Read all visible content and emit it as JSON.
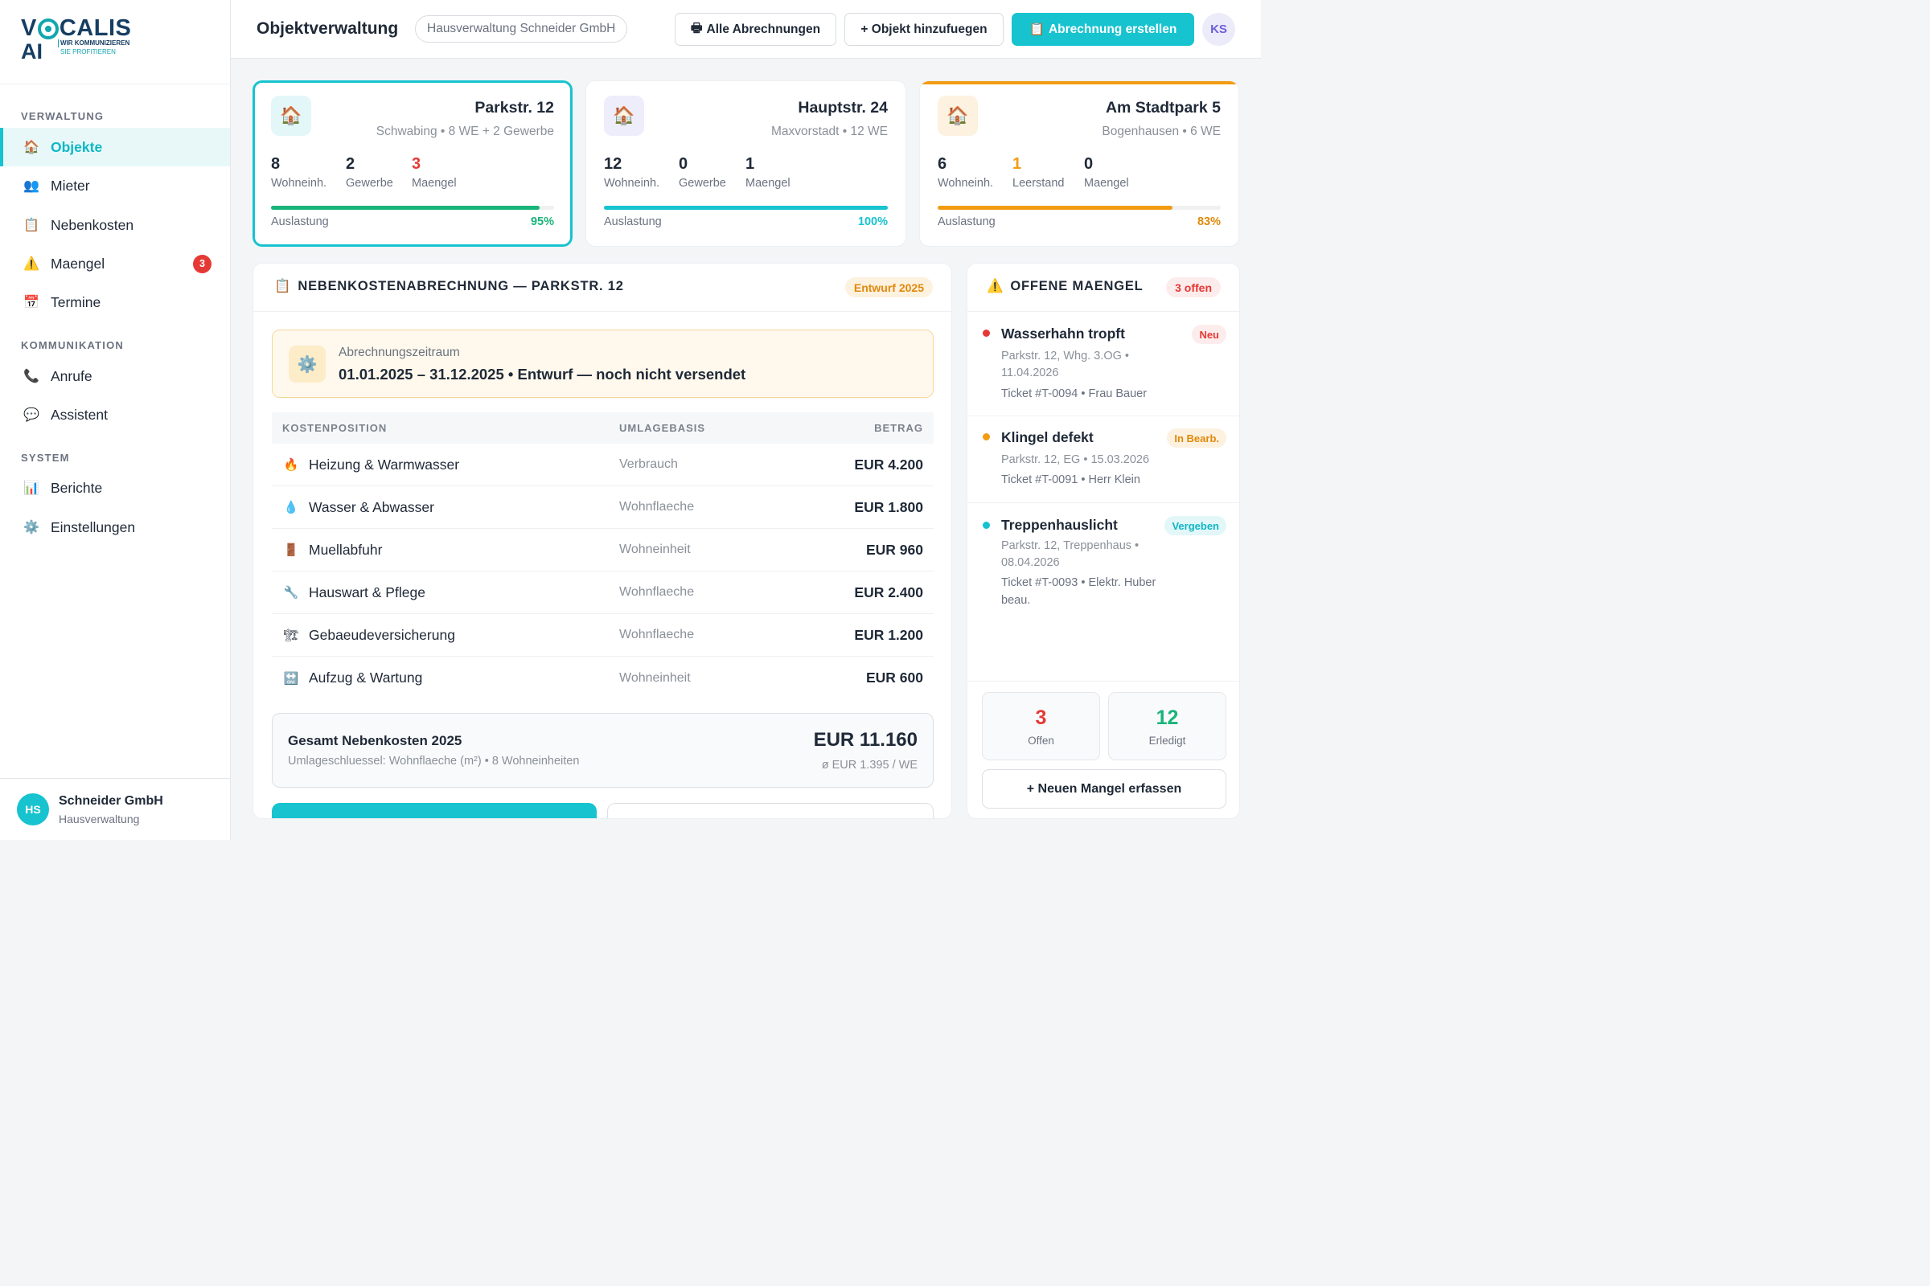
{
  "brand": {
    "name_part1": "V",
    "name_part2": "CALIS",
    "name_line2": "AI",
    "tagline1": "WIR KOMMUNIZIEREN",
    "tagline2": "SIE PROFITIEREN"
  },
  "sidebar": {
    "sections": [
      {
        "label": "VERWALTUNG"
      },
      {
        "label": "KOMMUNIKATION"
      },
      {
        "label": "SYSTEM"
      }
    ],
    "items": [
      {
        "label": "Objekte",
        "icon": "house-icon"
      },
      {
        "label": "Mieter",
        "icon": "people-icon"
      },
      {
        "label": "Nebenkosten",
        "icon": "clipboard-icon"
      },
      {
        "label": "Maengel",
        "icon": "warning-icon",
        "badge": "3"
      },
      {
        "label": "Termine",
        "icon": "calendar-icon"
      },
      {
        "label": "Anrufe",
        "icon": "phone-icon"
      },
      {
        "label": "Assistent",
        "icon": "chat-bubble-icon"
      },
      {
        "label": "Berichte",
        "icon": "bar-chart-icon"
      },
      {
        "label": "Einstellungen",
        "icon": "gear-icon"
      }
    ],
    "footer": {
      "initials": "HS",
      "name": "Schneider GmbH",
      "role": "Hausverwaltung"
    }
  },
  "header": {
    "title": "Objektverwaltung",
    "company": "Hausverwaltung Schneider GmbH",
    "btn_all": "Alle Abrechnungen",
    "btn_add": "+ Objekt hinzufuegen",
    "btn_create": "Abrechnung erstellen",
    "user_initials": "KS"
  },
  "properties": [
    {
      "name": "Parkstr. 12",
      "sub": "Schwabing • 8 WE + 2 Gewerbe",
      "stats": [
        {
          "value": "8",
          "label": "Wohneinh."
        },
        {
          "value": "2",
          "label": "Gewerbe"
        },
        {
          "value": "3",
          "label": "Maengel"
        }
      ],
      "util_label": "Auslastung",
      "util_pct": "95%",
      "util_value": 95,
      "bar_color": "#19b47a"
    },
    {
      "name": "Hauptstr. 24",
      "sub": "Maxvorstadt • 12 WE",
      "stats": [
        {
          "value": "12",
          "label": "Wohneinh."
        },
        {
          "value": "0",
          "label": "Gewerbe"
        },
        {
          "value": "1",
          "label": "Maengel"
        }
      ],
      "util_label": "Auslastung",
      "util_pct": "100%",
      "util_value": 100,
      "bar_color": "#16c3cf"
    },
    {
      "name": "Am Stadtpark 5",
      "sub": "Bogenhausen • 6 WE",
      "stats": [
        {
          "value": "6",
          "label": "Wohneinh."
        },
        {
          "value": "1",
          "label": "Leerstand"
        },
        {
          "value": "0",
          "label": "Maengel"
        }
      ],
      "util_label": "Auslastung",
      "util_pct": "83%",
      "util_value": 83,
      "bar_color": "#f39c12"
    }
  ],
  "billing": {
    "title": "NEBENKOSTENABRECHNUNG — PARKSTR. 12",
    "status": "Entwurf 2025",
    "period_label": "Abrechnungszeitraum",
    "period_value": "01.01.2025 – 31.12.2025 • Entwurf — noch nicht versendet",
    "columns": [
      "KOSTENPOSITION",
      "UMLAGEBASIS",
      "BETRAG"
    ],
    "rows": [
      {
        "icon": "fire-icon",
        "name": "Heizung & Warmwasser",
        "basis": "Verbrauch",
        "amount": "EUR 4.200"
      },
      {
        "icon": "water-drop-icon",
        "name": "Wasser & Abwasser",
        "basis": "Wohnflaeche",
        "amount": "EUR 1.800"
      },
      {
        "icon": "trash-bin-icon",
        "name": "Muellabfuhr",
        "basis": "Wohneinheit",
        "amount": "EUR 960"
      },
      {
        "icon": "wrench-icon",
        "name": "Hauswart & Pflege",
        "basis": "Wohnflaeche",
        "amount": "EUR 2.400"
      },
      {
        "icon": "insurance-icon",
        "name": "Gebaeudeversicherung",
        "basis": "Wohnflaeche",
        "amount": "EUR 1.200"
      },
      {
        "icon": "elevator-icon",
        "name": "Aufzug & Wartung",
        "basis": "Wohneinheit",
        "amount": "EUR 600"
      }
    ],
    "total_label": "Gesamt Nebenkosten 2025",
    "total_sub": "Umlageschluessel: Wohnflaeche (m²) • 8 Wohneinheiten",
    "total_value": "EUR 11.160",
    "total_avg": "ø EUR 1.395 / WE"
  },
  "defects": {
    "title": "OFFENE MAENGEL",
    "badge": "3 offen",
    "items": [
      {
        "title": "Wasserhahn tropft",
        "status": "Neu",
        "location": "Parkstr. 12, Whg. 3.OG • 11.04.2026",
        "ticket": "Ticket #T-0094 • Frau Bauer",
        "dot": "#e53935"
      },
      {
        "title": "Klingel defekt",
        "status": "In Bearb.",
        "location": "Parkstr. 12, EG • 15.03.2026",
        "ticket": "Ticket #T-0091 • Herr Klein",
        "dot": "#f39c12"
      },
      {
        "title": "Treppenhauslicht",
        "status": "Vergeben",
        "location": "Parkstr. 12, Treppenhaus • 08.04.2026",
        "ticket": "Ticket #T-0093 • Elektr. Huber beau.",
        "dot": "#16c3cf"
      }
    ],
    "open_count": "3",
    "open_label": "Offen",
    "done_count": "12",
    "done_label": "Erledigt",
    "add_label": "+ Neuen Mangel erfassen"
  }
}
